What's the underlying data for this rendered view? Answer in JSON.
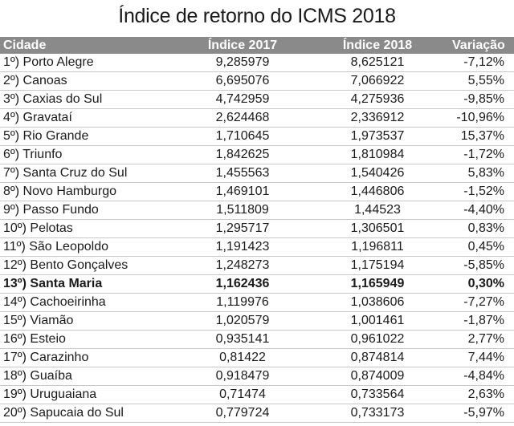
{
  "title": "Índice de retorno do ICMS 2018",
  "table": {
    "headers": [
      "Cidade",
      "Índice 2017",
      "Índice 2018",
      "Variação"
    ],
    "rows": [
      {
        "rank": "1º)",
        "city": "Porto Alegre",
        "v2017": "9,285979",
        "v2018": "8,625121",
        "change": "-7,12%"
      },
      {
        "rank": "2º)",
        "city": "Canoas",
        "v2017": "6,695076",
        "v2018": "7,066922",
        "change": "5,55%"
      },
      {
        "rank": "3º)",
        "city": "Caxias do Sul",
        "v2017": "4,742959",
        "v2018": "4,275936",
        "change": "-9,85%"
      },
      {
        "rank": "4º)",
        "city": "Gravataí",
        "v2017": "2,624468",
        "v2018": "2,336912",
        "change": "-10,96%"
      },
      {
        "rank": "5º)",
        "city": "Rio Grande",
        "v2017": "1,710645",
        "v2018": "1,973537",
        "change": "15,37%"
      },
      {
        "rank": "6º)",
        "city": "Triunfo",
        "v2017": "1,842625",
        "v2018": "1,810984",
        "change": "-1,72%"
      },
      {
        "rank": "7º)",
        "city": "Santa Cruz do Sul",
        "v2017": "1,455563",
        "v2018": "1,540426",
        "change": "5,83%"
      },
      {
        "rank": "8º)",
        "city": "Novo Hamburgo",
        "v2017": "1,469101",
        "v2018": "1,446806",
        "change": "-1,52%"
      },
      {
        "rank": "9º)",
        "city": "Passo Fundo",
        "v2017": "1,511809",
        "v2018": "1,44523",
        "change": "-4,40%"
      },
      {
        "rank": "10º)",
        "city": "Pelotas",
        "v2017": "1,295717",
        "v2018": "1,306501",
        "change": "0,83%"
      },
      {
        "rank": "11º)",
        "city": "São Leopoldo",
        "v2017": "1,191423",
        "v2018": "1,196811",
        "change": "0,45%"
      },
      {
        "rank": "12º)",
        "city": "Bento Gonçalves",
        "v2017": "1,248273",
        "v2018": "1,175194",
        "change": "-5,85%"
      },
      {
        "rank": "13º)",
        "city": "Santa Maria",
        "v2017": "1,162436",
        "v2018": "1,165949",
        "change": "0,30%",
        "bold": true
      },
      {
        "rank": "14º)",
        "city": "Cachoeirinha",
        "v2017": "1,119976",
        "v2018": "1,038606",
        "change": "-7,27%"
      },
      {
        "rank": "15º)",
        "city": "Viamão",
        "v2017": "1,020579",
        "v2018": "1,001461",
        "change": "-1,87%"
      },
      {
        "rank": "16º)",
        "city": "Esteio",
        "v2017": "0,935141",
        "v2018": "0,961022",
        "change": "2,77%"
      },
      {
        "rank": "17º)",
        "city": "Carazinho",
        "v2017": "0,81422",
        "v2018": "0,874814",
        "change": "7,44%"
      },
      {
        "rank": "18º)",
        "city": "Guaíba",
        "v2017": "0,918479",
        "v2018": "0,874009",
        "change": "-4,84%"
      },
      {
        "rank": "19º)",
        "city": "Uruguaiana",
        "v2017": "0,71474",
        "v2018": "0,733564",
        "change": "2,63%"
      },
      {
        "rank": "20º)",
        "city": "Sapucaia do Sul",
        "v2017": "0,779724",
        "v2018": "0,733173",
        "change": "-5,97%"
      }
    ]
  }
}
